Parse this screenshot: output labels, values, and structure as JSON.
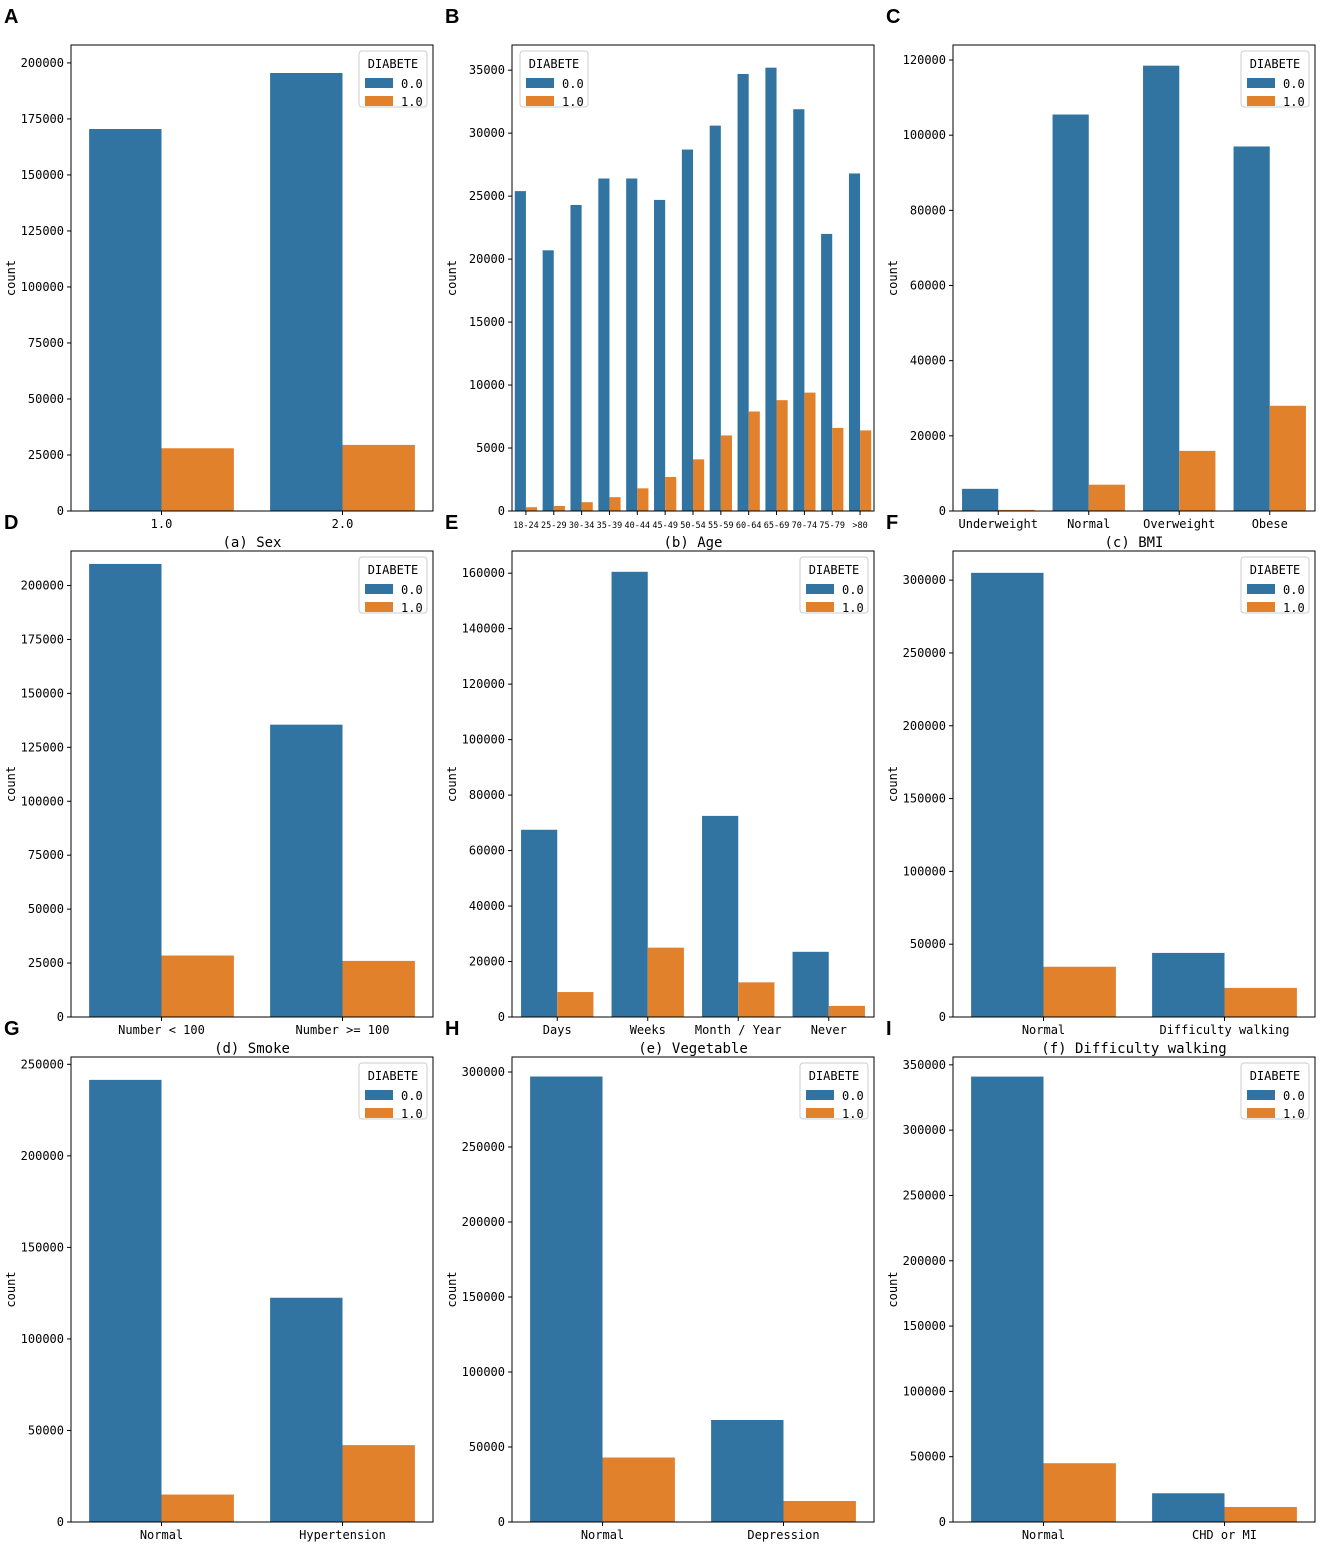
{
  "colors": {
    "series_0": "#3274a1",
    "series_1": "#e1812c"
  },
  "chart_data": [
    {
      "letter": "A",
      "type": "bar",
      "caption": "(a) Sex",
      "ylabel": "count",
      "categories": [
        "1.0",
        "2.0"
      ],
      "ylim": [
        0,
        208000
      ],
      "yticks": [
        0,
        25000,
        50000,
        75000,
        100000,
        125000,
        150000,
        175000,
        200000
      ],
      "legend": {
        "title": "DIABETE",
        "placement": "top-right",
        "entries": [
          "0.0",
          "1.0"
        ]
      },
      "series": [
        {
          "name": "0.0",
          "values": [
            170500,
            195500
          ]
        },
        {
          "name": "1.0",
          "values": [
            28000,
            29500
          ]
        }
      ]
    },
    {
      "letter": "B",
      "type": "bar",
      "caption": "(b) Age",
      "ylabel": "count",
      "categories": [
        "18-24",
        "25-29",
        "30-34",
        "35-39",
        "40-44",
        "45-49",
        "50-54",
        "55-59",
        "60-64",
        "65-69",
        "70-74",
        "75-79",
        ">80"
      ],
      "ylim": [
        0,
        37000
      ],
      "yticks": [
        0,
        5000,
        10000,
        15000,
        20000,
        25000,
        30000,
        35000
      ],
      "legend": {
        "title": "DIABETE",
        "placement": "top-left",
        "entries": [
          "0.0",
          "1.0"
        ]
      },
      "series": [
        {
          "name": "0.0",
          "values": [
            25400,
            20700,
            24300,
            26400,
            26400,
            24700,
            28700,
            30600,
            34700,
            35200,
            31900,
            22000,
            26800
          ]
        },
        {
          "name": "1.0",
          "values": [
            300,
            400,
            700,
            1100,
            1800,
            2700,
            4100,
            6000,
            7900,
            8800,
            9400,
            6600,
            6400
          ]
        }
      ]
    },
    {
      "letter": "C",
      "type": "bar",
      "caption": "(c) BMI",
      "ylabel": "count",
      "categories": [
        "Underweight",
        "Normal",
        "Overweight",
        "Obese"
      ],
      "ylim": [
        0,
        124000
      ],
      "yticks": [
        0,
        20000,
        40000,
        60000,
        80000,
        100000,
        120000
      ],
      "legend": {
        "title": "DIABETE",
        "placement": "top-right",
        "entries": [
          "0.0",
          "1.0"
        ]
      },
      "series": [
        {
          "name": "0.0",
          "values": [
            5900,
            105500,
            118500,
            97000
          ]
        },
        {
          "name": "1.0",
          "values": [
            300,
            7000,
            16000,
            28000
          ]
        }
      ]
    },
    {
      "letter": "D",
      "type": "bar",
      "caption": "(d) Smoke",
      "ylabel": "count",
      "categories": [
        "Number < 100",
        "Number >= 100"
      ],
      "ylim": [
        0,
        216000
      ],
      "yticks": [
        0,
        25000,
        50000,
        75000,
        100000,
        125000,
        150000,
        175000,
        200000
      ],
      "legend": {
        "title": "DIABETE",
        "placement": "top-right",
        "entries": [
          "0.0",
          "1.0"
        ]
      },
      "series": [
        {
          "name": "0.0",
          "values": [
            210000,
            135500
          ]
        },
        {
          "name": "1.0",
          "values": [
            28500,
            26000
          ]
        }
      ]
    },
    {
      "letter": "E",
      "type": "bar",
      "caption": "(e) Vegetable",
      "ylabel": "count",
      "categories": [
        "Days",
        "Weeks",
        "Month / Year",
        "Never"
      ],
      "ylim": [
        0,
        168000
      ],
      "yticks": [
        0,
        20000,
        40000,
        60000,
        80000,
        100000,
        120000,
        140000,
        160000
      ],
      "legend": {
        "title": "DIABETE",
        "placement": "top-right",
        "entries": [
          "0.0",
          "1.0"
        ]
      },
      "series": [
        {
          "name": "0.0",
          "values": [
            67500,
            160500,
            72500,
            23500
          ]
        },
        {
          "name": "1.0",
          "values": [
            9000,
            25000,
            12500,
            4000
          ]
        }
      ]
    },
    {
      "letter": "F",
      "type": "bar",
      "caption": "(f) Difficulty walking",
      "ylabel": "count",
      "categories": [
        "Normal",
        "Difficulty walking"
      ],
      "ylim": [
        0,
        320000
      ],
      "yticks": [
        0,
        50000,
        100000,
        150000,
        200000,
        250000,
        300000
      ],
      "legend": {
        "title": "DIABETE",
        "placement": "top-right",
        "entries": [
          "0.0",
          "1.0"
        ]
      },
      "series": [
        {
          "name": "0.0",
          "values": [
            305000,
            44000
          ]
        },
        {
          "name": "1.0",
          "values": [
            34500,
            20000
          ]
        }
      ]
    },
    {
      "letter": "G",
      "type": "bar",
      "caption": "",
      "ylabel": "count",
      "categories": [
        "Normal",
        "Hypertension"
      ],
      "ylim": [
        0,
        254000
      ],
      "yticks": [
        0,
        50000,
        100000,
        150000,
        200000,
        250000
      ],
      "legend": {
        "title": "DIABETE",
        "placement": "top-right",
        "entries": [
          "0.0",
          "1.0"
        ]
      },
      "series": [
        {
          "name": "0.0",
          "values": [
            241500,
            122500
          ]
        },
        {
          "name": "1.0",
          "values": [
            15000,
            42000
          ]
        }
      ]
    },
    {
      "letter": "H",
      "type": "bar",
      "caption": "",
      "ylabel": "count",
      "categories": [
        "Normal",
        "Depression"
      ],
      "ylim": [
        0,
        310000
      ],
      "yticks": [
        0,
        50000,
        100000,
        150000,
        200000,
        250000,
        300000
      ],
      "legend": {
        "title": "DIABETE",
        "placement": "top-right",
        "entries": [
          "0.0",
          "1.0"
        ]
      },
      "series": [
        {
          "name": "0.0",
          "values": [
            297000,
            68000
          ]
        },
        {
          "name": "1.0",
          "values": [
            43000,
            14000
          ]
        }
      ]
    },
    {
      "letter": "I",
      "type": "bar",
      "caption": "",
      "ylabel": "count",
      "categories": [
        "Normal",
        "CHD or MI"
      ],
      "ylim": [
        0,
        356000
      ],
      "yticks": [
        0,
        50000,
        100000,
        150000,
        200000,
        250000,
        300000,
        350000
      ],
      "legend": {
        "title": "DIABETE",
        "placement": "top-right",
        "entries": [
          "0.0",
          "1.0"
        ]
      },
      "series": [
        {
          "name": "0.0",
          "values": [
            341000,
            22000
          ]
        },
        {
          "name": "1.0",
          "values": [
            45000,
            11500
          ]
        }
      ]
    }
  ]
}
